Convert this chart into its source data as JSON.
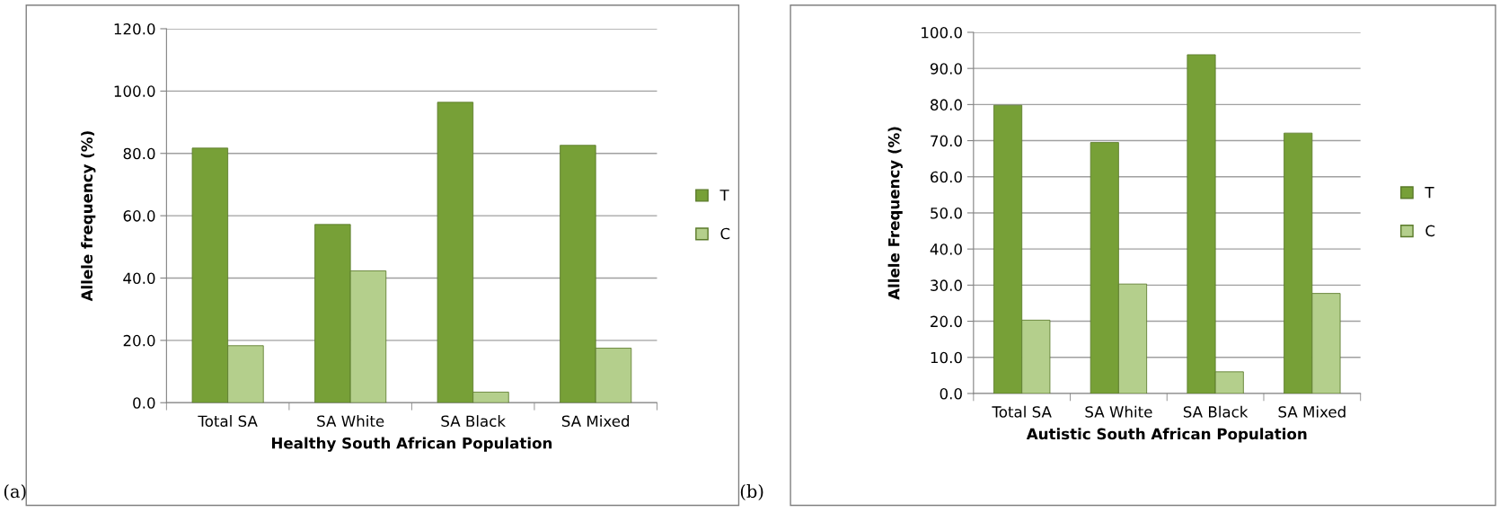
{
  "chart_data": [
    {
      "type": "bar",
      "categories": [
        "Total SA",
        "SA White",
        "SA Black",
        "SA Mixed"
      ],
      "xlabel": "Healthy South African Population",
      "ylabel": "Allele frequency (%)",
      "ylim": [
        0,
        120
      ],
      "yticks": [
        {
          "value": 0,
          "label": "0.0"
        },
        {
          "value": 20,
          "label": "20.0"
        },
        {
          "value": 40,
          "label": "40.0"
        },
        {
          "value": 60,
          "label": "60.0"
        },
        {
          "value": 80,
          "label": "80.0"
        },
        {
          "value": 100,
          "label": "100.0"
        },
        {
          "value": 120,
          "label": "120.0"
        }
      ],
      "grid": "y",
      "legend": "right",
      "annotations": [
        "(a)"
      ],
      "series": [
        {
          "name": "T",
          "color": "#77a037",
          "values": [
            81.7,
            57.2,
            96.4,
            82.6
          ]
        },
        {
          "name": "C",
          "color": "#b4cf8c",
          "values": [
            18.3,
            42.3,
            3.4,
            17.5
          ]
        }
      ]
    },
    {
      "type": "bar",
      "categories": [
        "Total SA",
        "SA White",
        "SA Black",
        "SA Mixed"
      ],
      "xlabel": "Autistic South African Population",
      "ylabel": "Allele Frequency (%)",
      "ylim": [
        0,
        100
      ],
      "yticks": [
        {
          "value": 0,
          "label": "0.0"
        },
        {
          "value": 10,
          "label": "10.0"
        },
        {
          "value": 20,
          "label": "20.0"
        },
        {
          "value": 30,
          "label": "30.0"
        },
        {
          "value": 40,
          "label": "40.0"
        },
        {
          "value": 50,
          "label": "50.0"
        },
        {
          "value": 60,
          "label": "60.0"
        },
        {
          "value": 70,
          "label": "70.0"
        },
        {
          "value": 80,
          "label": "80.0"
        },
        {
          "value": 90,
          "label": "90.0"
        },
        {
          "value": 100,
          "label": "100.0"
        }
      ],
      "grid": "y",
      "legend": "right",
      "annotations": [
        "(b)"
      ],
      "series": [
        {
          "name": "T",
          "color": "#77a037",
          "values": [
            79.8,
            69.5,
            93.8,
            72.1
          ]
        },
        {
          "name": "C",
          "color": "#b4cf8c",
          "values": [
            20.3,
            30.3,
            6.0,
            27.7
          ]
        }
      ]
    }
  ]
}
